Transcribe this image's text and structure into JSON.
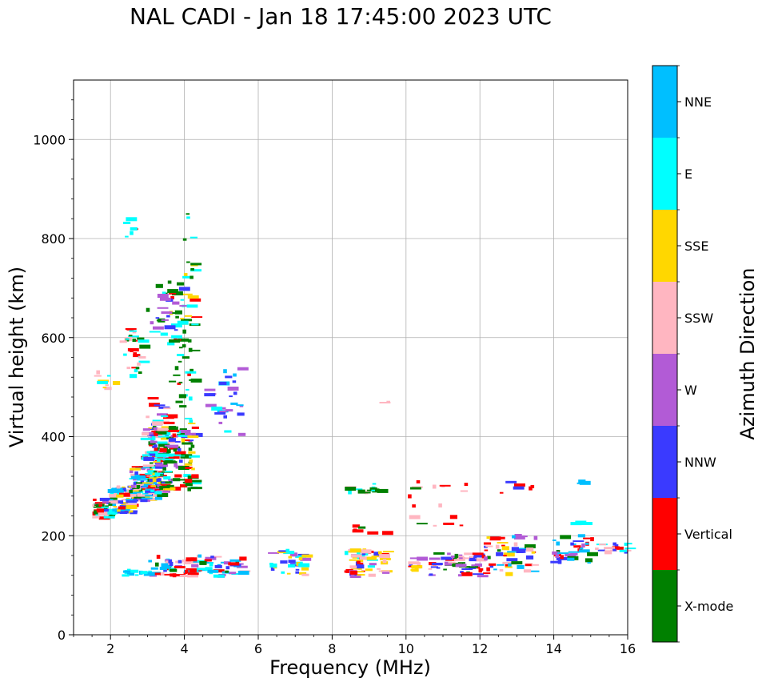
{
  "chart_data": {
    "type": "scatter",
    "title": "NAL CADI - Jan 18 17:45:00 2023 UTC",
    "xlabel": "Frequency (MHz)",
    "ylabel": "Virtual height (km)",
    "xlim": [
      1,
      16
    ],
    "ylim": [
      0,
      1120
    ],
    "xticks": [
      2,
      4,
      6,
      8,
      10,
      12,
      14,
      16
    ],
    "yticks": [
      0,
      200,
      400,
      600,
      800,
      1000
    ],
    "grid": true,
    "colorbar": {
      "label": "Azimuth Direction",
      "categories": [
        {
          "name": "X-mode",
          "color": "#008000"
        },
        {
          "name": "Vertical",
          "color": "#ff0000"
        },
        {
          "name": "NNW",
          "color": "#3a3aff"
        },
        {
          "name": "W",
          "color": "#b25bd6"
        },
        {
          "name": "SSW",
          "color": "#ffb6c1"
        },
        {
          "name": "SSE",
          "color": "#ffd700"
        },
        {
          "name": "E",
          "color": "#00ffff"
        },
        {
          "name": "NNE",
          "color": "#00bfff"
        }
      ]
    },
    "seed": 18174523,
    "clusters": [
      {
        "f": [
          1.5,
          1.9
        ],
        "h": [
          235,
          275
        ],
        "n": 35,
        "mix": [
          "Vertical",
          "E",
          "SSW",
          "W",
          "NNW",
          "X-mode"
        ]
      },
      {
        "f": [
          1.9,
          2.6
        ],
        "h": [
          245,
          300
        ],
        "n": 70,
        "mix": [
          "Vertical",
          "SSE",
          "E",
          "NNW",
          "SSW",
          "X-mode",
          "NNE"
        ]
      },
      {
        "f": [
          2.5,
          3.3
        ],
        "h": [
          270,
          340
        ],
        "n": 110,
        "mix": [
          "Vertical",
          "W",
          "NNW",
          "E",
          "SSE",
          "X-mode",
          "SSW",
          "NNE"
        ]
      },
      {
        "f": [
          3.0,
          4.2
        ],
        "h": [
          285,
          420
        ],
        "n": 150,
        "mix": [
          "X-mode",
          "X-mode",
          "X-mode",
          "Vertical",
          "E",
          "NNW",
          "SSE",
          "W"
        ]
      },
      {
        "f": [
          2.8,
          3.6
        ],
        "h": [
          340,
          480
        ],
        "n": 50,
        "mix": [
          "Vertical",
          "W",
          "NNW",
          "SSW",
          "E"
        ]
      },
      {
        "f": [
          3.5,
          4.2
        ],
        "h": [
          420,
          700
        ],
        "n": 55,
        "mix": [
          "X-mode",
          "X-mode",
          "Vertical",
          "E",
          "SSE"
        ]
      },
      {
        "f": [
          2.2,
          2.8
        ],
        "h": [
          520,
          620
        ],
        "n": 30,
        "mix": [
          "Vertical",
          "SSW",
          "E",
          "X-mode"
        ]
      },
      {
        "f": [
          2.9,
          3.9
        ],
        "h": [
          600,
          720
        ],
        "n": 30,
        "mix": [
          "Vertical",
          "X-mode",
          "E",
          "W",
          "NNW"
        ]
      },
      {
        "f": [
          1.5,
          2.1
        ],
        "h": [
          495,
          530
        ],
        "n": 10,
        "mix": [
          "E",
          "SSE",
          "SSW"
        ]
      },
      {
        "f": [
          3.9,
          4.2
        ],
        "h": [
          720,
          860
        ],
        "n": 12,
        "mix": [
          "X-mode",
          "E",
          "SSE"
        ]
      },
      {
        "f": [
          2.2,
          2.6
        ],
        "h": [
          780,
          860
        ],
        "n": 6,
        "mix": [
          "E",
          "Vertical",
          "SSW"
        ]
      },
      {
        "f": [
          4.5,
          5.6
        ],
        "h": [
          400,
          560
        ],
        "n": 28,
        "mix": [
          "W",
          "W",
          "E",
          "NNE",
          "NNW"
        ]
      },
      {
        "f": [
          3.0,
          5.5
        ],
        "h": [
          118,
          160
        ],
        "n": 90,
        "mix": [
          "NNE",
          "NNE",
          "E",
          "W",
          "NNW",
          "SSW",
          "Vertical",
          "X-mode"
        ]
      },
      {
        "f": [
          2.3,
          3.0
        ],
        "h": [
          118,
          130
        ],
        "n": 10,
        "mix": [
          "NNE",
          "E"
        ]
      },
      {
        "f": [
          6.2,
          7.2
        ],
        "h": [
          120,
          170
        ],
        "n": 30,
        "mix": [
          "NNW",
          "W",
          "SSE",
          "SSW",
          "E"
        ]
      },
      {
        "f": [
          8.3,
          9.4
        ],
        "h": [
          118,
          175
        ],
        "n": 60,
        "mix": [
          "W",
          "SSE",
          "SSE",
          "E",
          "NNW",
          "SSW",
          "Vertical"
        ]
      },
      {
        "f": [
          8.3,
          9.3
        ],
        "h": [
          285,
          305
        ],
        "n": 14,
        "mix": [
          "E",
          "E",
          "SSW",
          "X-mode"
        ]
      },
      {
        "f": [
          8.4,
          9.6
        ],
        "h": [
          205,
          225
        ],
        "n": 6,
        "mix": [
          "Vertical",
          "Vertical",
          "X-mode"
        ]
      },
      {
        "f": [
          10.0,
          10.3
        ],
        "h": [
          120,
          160
        ],
        "n": 12,
        "mix": [
          "W",
          "SSE",
          "Vertical",
          "NNW",
          "SSW"
        ]
      },
      {
        "f": [
          10.0,
          10.3
        ],
        "h": [
          210,
          310
        ],
        "n": 7,
        "mix": [
          "X-mode",
          "SSW",
          "Vertical"
        ]
      },
      {
        "f": [
          10.6,
          12.0
        ],
        "h": [
          118,
          165
        ],
        "n": 60,
        "mix": [
          "X-mode",
          "Vertical",
          "W",
          "NNW",
          "SSW"
        ]
      },
      {
        "f": [
          10.6,
          11.6
        ],
        "h": [
          210,
          305
        ],
        "n": 10,
        "mix": [
          "X-mode",
          "Vertical",
          "SSW"
        ]
      },
      {
        "f": [
          12.0,
          13.5
        ],
        "h": [
          120,
          200
        ],
        "n": 55,
        "mix": [
          "Vertical",
          "Vertical",
          "X-mode",
          "W",
          "SSE",
          "NNE",
          "NNW",
          "SSW"
        ]
      },
      {
        "f": [
          12.5,
          13.5
        ],
        "h": [
          285,
          315
        ],
        "n": 6,
        "mix": [
          "X-mode",
          "Vertical",
          "NNW"
        ]
      },
      {
        "f": [
          13.9,
          15.0
        ],
        "h": [
          145,
          200
        ],
        "n": 35,
        "mix": [
          "NNE",
          "NNE",
          "NNW",
          "W",
          "X-mode",
          "Vertical"
        ]
      },
      {
        "f": [
          14.9,
          16.0
        ],
        "h": [
          165,
          190
        ],
        "n": 18,
        "mix": [
          "Vertical",
          "NNW",
          "SSW",
          "E"
        ]
      },
      {
        "f": [
          14.3,
          14.8
        ],
        "h": [
          222,
          228
        ],
        "n": 3,
        "mix": [
          "E"
        ]
      },
      {
        "f": [
          14.3,
          14.8
        ],
        "h": [
          305,
          312
        ],
        "n": 3,
        "mix": [
          "NNE"
        ]
      },
      {
        "f": [
          9.2,
          9.5
        ],
        "h": [
          468,
          474
        ],
        "n": 2,
        "mix": [
          "SSW"
        ]
      }
    ]
  }
}
